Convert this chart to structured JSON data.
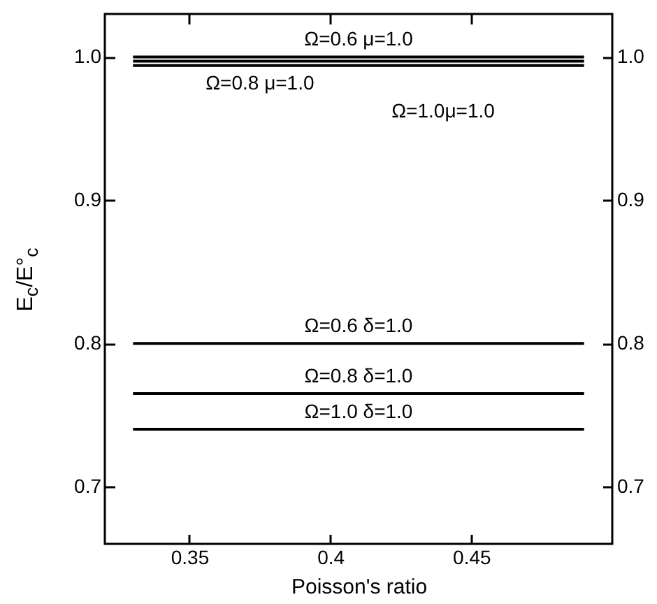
{
  "chart_data": {
    "type": "line",
    "xlabel": "Poisson's ratio",
    "ylabel": "E$_{c}$/E°$_{c}$",
    "x": [
      0.33,
      0.49
    ],
    "series": [
      {
        "name": "Ω=0.6  μ=1.0",
        "color": "#000000",
        "values": [
          1.0,
          1.0
        ]
      },
      {
        "name": "Ω=0.8  μ=1.0",
        "color": "#000000",
        "values": [
          0.997,
          0.997
        ]
      },
      {
        "name": "Ω=1.0μ=1.0",
        "color": "#000000",
        "values": [
          0.994,
          0.994
        ]
      },
      {
        "name": "Ω=0.6  δ=1.0",
        "color": "#000000",
        "values": [
          0.8,
          0.8
        ]
      },
      {
        "name": "Ω=0.8  δ=1.0",
        "color": "#000000",
        "values": [
          0.765,
          0.765
        ]
      },
      {
        "name": "Ω=1.0  δ=1.0",
        "color": "#000000",
        "values": [
          0.74,
          0.74
        ]
      }
    ],
    "xlim": [
      0.32,
      0.5
    ],
    "xticks": [
      0.35,
      0.4,
      0.45
    ],
    "ylim": [
      0.66,
      1.03
    ],
    "yticks": [
      0.7,
      0.8,
      0.9,
      {
        "value": 1.0,
        "label": "1.0"
      }
    ],
    "y2lim": [
      0.66,
      1.03
    ],
    "y2ticks": [
      0.7,
      0.8,
      0.9,
      {
        "value": 1.0,
        "label": "1.0"
      }
    ],
    "grid": false,
    "marker": "none",
    "line_style": "solid"
  }
}
